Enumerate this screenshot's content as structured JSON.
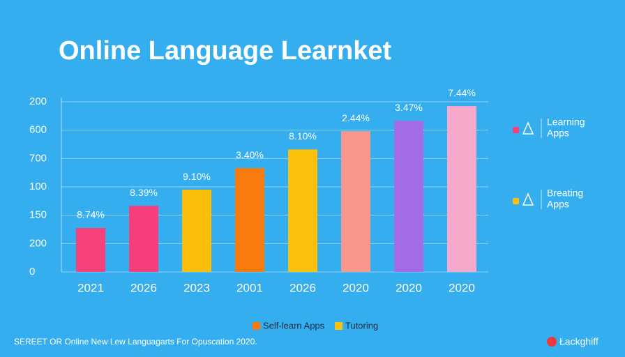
{
  "chart_data": {
    "type": "bar",
    "title": "Online Language Learnket",
    "categories": [
      "2021",
      "2026",
      "2023",
      "2001",
      "2026",
      "2020",
      "2020",
      "2020"
    ],
    "values": [
      1.55,
      2.33,
      2.9,
      3.66,
      4.32,
      4.96,
      5.33,
      5.85
    ],
    "colors": [
      "#f7417d",
      "#f63e7c",
      "#fbbf0b",
      "#f97b0e",
      "#fcc10d",
      "#f8978b",
      "#a56ce8",
      "#f7a9cc"
    ],
    "annotations": [
      "8.74%",
      "8.39%",
      "9.10%",
      "3.40%",
      "8.10%",
      "2.44%",
      "3.47%",
      "7.44%"
    ],
    "ylim": [
      0,
      6
    ],
    "yticks": [
      0,
      {
        "value": 1,
        "label": "200"
      },
      {
        "value": 2,
        "label": "150"
      },
      {
        "value": 3,
        "label": "100"
      },
      {
        "value": 4,
        "label": "700"
      },
      {
        "value": 5,
        "label": "600"
      },
      {
        "value": 6,
        "label": "200"
      }
    ],
    "grid": true,
    "legend": [
      {
        "name": "Self-learn Apps",
        "color": "#f97b0e"
      },
      {
        "name": "Tutoring",
        "color": "#fcc10d"
      }
    ],
    "side_legend": [
      {
        "lines": [
          "Learning",
          "Apps"
        ],
        "color": "#f7417d"
      },
      {
        "lines": [
          "Breating",
          "Apps"
        ],
        "color": "#fcc10d"
      }
    ],
    "footer": "SEREET OR Online New Lew Languagarts For Opuscation 2020.",
    "brand": "Łackghiff"
  }
}
